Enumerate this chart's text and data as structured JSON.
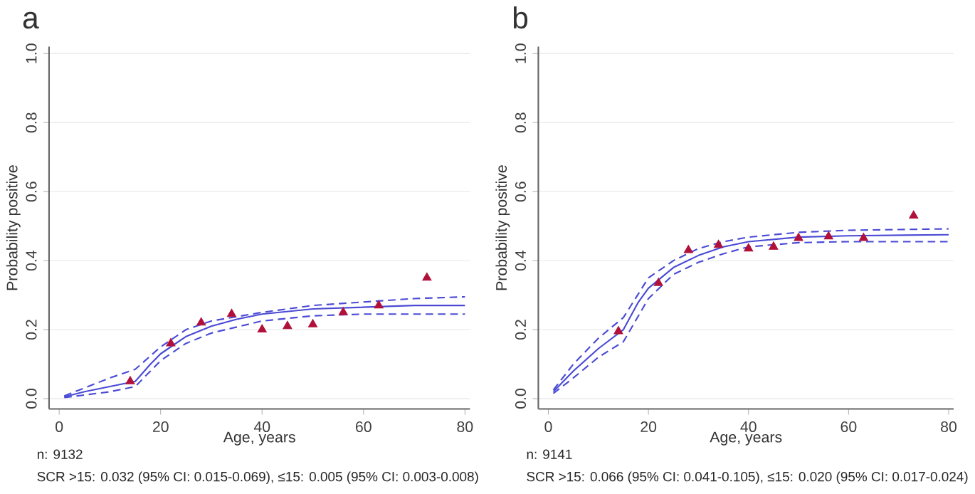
{
  "chart_data": [
    {
      "type": "line",
      "title": "a",
      "xlabel": "Age, years",
      "ylabel": "Probability positive",
      "xlim": [
        -2,
        81
      ],
      "ylim": [
        -0.03,
        1.02
      ],
      "xticks": [
        0,
        20,
        40,
        60,
        80
      ],
      "yticks": [
        {
          "value": 0,
          "label": "0.0"
        },
        {
          "value": 0.2,
          "label": "0.2"
        },
        {
          "value": 0.4,
          "label": "0.4"
        },
        {
          "value": 0.6,
          "label": "0.6"
        },
        {
          "value": 0.8,
          "label": "0.8"
        },
        {
          "value": 1,
          "label": "1.0"
        }
      ],
      "grid": "y",
      "series": [
        {
          "type": "scatter",
          "marker": "triangle",
          "color": "#b0103a",
          "x": [
            14,
            22,
            28,
            34,
            40,
            45,
            50,
            56,
            63,
            72.5
          ],
          "values": [
            0.05,
            0.16,
            0.22,
            0.245,
            0.2,
            0.21,
            0.215,
            0.25,
            0.27,
            0.35
          ]
        },
        {
          "line_style": "solid",
          "color": "#4a4ad6",
          "x": [
            1,
            5,
            10,
            15,
            18,
            20,
            25,
            30,
            35,
            40,
            50,
            60,
            70,
            80
          ],
          "values": [
            0.005,
            0.02,
            0.035,
            0.05,
            0.1,
            0.13,
            0.18,
            0.21,
            0.23,
            0.245,
            0.26,
            0.265,
            0.27,
            0.27
          ]
        },
        {
          "line_style": "dashed",
          "color": "#4a4ad6",
          "x": [
            1,
            10,
            15,
            20,
            25,
            30,
            40,
            50,
            60,
            80
          ],
          "values": [
            0.003,
            0.02,
            0.035,
            0.11,
            0.16,
            0.19,
            0.225,
            0.24,
            0.245,
            0.245
          ]
        },
        {
          "line_style": "dashed",
          "color": "#4a4ad6",
          "x": [
            1,
            10,
            15,
            20,
            25,
            30,
            40,
            50,
            60,
            70,
            80
          ],
          "values": [
            0.008,
            0.06,
            0.085,
            0.15,
            0.2,
            0.225,
            0.25,
            0.27,
            0.28,
            0.29,
            0.295
          ]
        }
      ],
      "annotations": [
        "n: 9132",
        "SCR >15: 0.032 (95% CI: 0.015-0.069), ≤15: 0.005 (95% CI: 0.003-0.008)"
      ]
    },
    {
      "type": "line",
      "title": "b",
      "xlabel": "Age, years",
      "ylabel": "Probability positive",
      "xlim": [
        -2,
        81
      ],
      "ylim": [
        -0.03,
        1.02
      ],
      "xticks": [
        0,
        20,
        40,
        60,
        80
      ],
      "yticks": [
        {
          "value": 0,
          "label": "0.0"
        },
        {
          "value": 0.2,
          "label": "0.2"
        },
        {
          "value": 0.4,
          "label": "0.4"
        },
        {
          "value": 0.6,
          "label": "0.6"
        },
        {
          "value": 0.8,
          "label": "0.8"
        },
        {
          "value": 1,
          "label": "1.0"
        }
      ],
      "grid": "y",
      "series": [
        {
          "type": "scatter",
          "marker": "triangle",
          "color": "#b0103a",
          "x": [
            14,
            22,
            28,
            34,
            40,
            45,
            50,
            56,
            63,
            73
          ],
          "values": [
            0.195,
            0.335,
            0.43,
            0.445,
            0.435,
            0.44,
            0.465,
            0.47,
            0.465,
            0.53
          ]
        },
        {
          "line_style": "solid",
          "color": "#4a4ad6",
          "x": [
            1,
            5,
            10,
            15,
            18,
            20,
            25,
            30,
            35,
            40,
            50,
            60,
            80
          ],
          "values": [
            0.02,
            0.08,
            0.145,
            0.2,
            0.28,
            0.32,
            0.38,
            0.415,
            0.44,
            0.455,
            0.468,
            0.472,
            0.475
          ]
        },
        {
          "line_style": "dashed",
          "color": "#4a4ad6",
          "x": [
            1,
            5,
            10,
            15,
            20,
            25,
            30,
            35,
            40,
            50,
            60,
            80
          ],
          "values": [
            0.015,
            0.06,
            0.12,
            0.165,
            0.29,
            0.36,
            0.395,
            0.42,
            0.44,
            0.452,
            0.455,
            0.455
          ]
        },
        {
          "line_style": "dashed",
          "color": "#4a4ad6",
          "x": [
            1,
            5,
            10,
            15,
            20,
            25,
            30,
            35,
            40,
            50,
            60,
            80
          ],
          "values": [
            0.025,
            0.1,
            0.175,
            0.235,
            0.35,
            0.4,
            0.435,
            0.455,
            0.468,
            0.482,
            0.488,
            0.492
          ]
        }
      ],
      "annotations": [
        "n: 9141",
        "SCR >15: 0.066 (95% CI: 0.041-0.105), ≤15: 0.020 (95% CI: 0.017-0.024)"
      ]
    }
  ]
}
